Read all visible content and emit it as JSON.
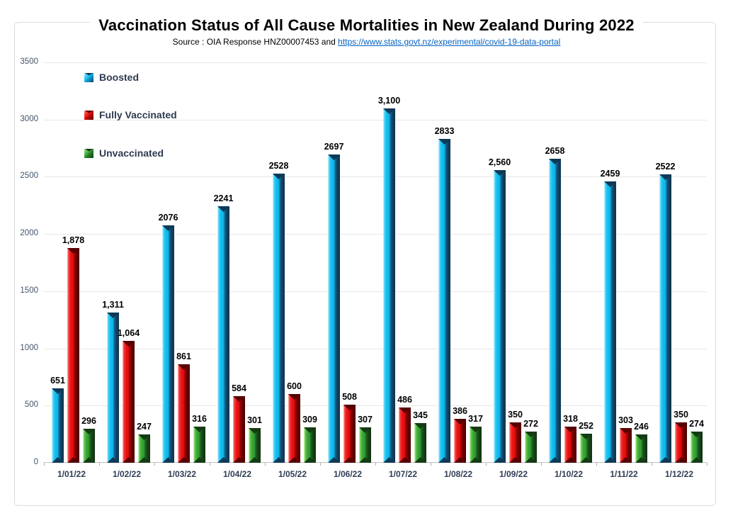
{
  "header": {
    "title": "Vaccination Status of All Cause Mortalities in New Zealand During 2022",
    "source_prefix": "Source : OIA Response HNZ00007453 and ",
    "source_link": "https://www.stats.govt.nz/experimental/covid-19-data-portal"
  },
  "chart_data": {
    "type": "bar",
    "title": "Vaccination Status of All Cause Mortalities in New Zealand During 2022",
    "categories": [
      "1/01/22",
      "1/02/22",
      "1/03/22",
      "1/04/22",
      "1/05/22",
      "1/06/22",
      "1/07/22",
      "1/08/22",
      "1/09/22",
      "1/10/22",
      "1/11/22",
      "1/12/22"
    ],
    "series": [
      {
        "name": "Boosted",
        "color": "#12beef",
        "values": [
          651,
          1311,
          2076,
          2241,
          2528,
          2697,
          3100,
          2833,
          2560,
          2658,
          2459,
          2522
        ],
        "labels": [
          "651",
          "1,311",
          "2076",
          "2241",
          "2528",
          "2697",
          "3,100",
          "2833",
          "2,560",
          "2658",
          "2459",
          "2522"
        ]
      },
      {
        "name": "Fully Vaccinated",
        "color": "#ea1111",
        "values": [
          1878,
          1064,
          861,
          584,
          600,
          508,
          486,
          386,
          350,
          318,
          303,
          350
        ],
        "labels": [
          "1,878",
          "1,064",
          "861",
          "584",
          "600",
          "508",
          "486",
          "386",
          "350",
          "318",
          "303",
          "350"
        ]
      },
      {
        "name": "Unvaccinated",
        "color": "#38a537",
        "values": [
          296,
          247,
          316,
          301,
          309,
          307,
          345,
          317,
          272,
          252,
          246,
          274
        ],
        "labels": [
          "296",
          "247",
          "316",
          "301",
          "309",
          "307",
          "345",
          "317",
          "272",
          "252",
          "246",
          "274"
        ]
      }
    ],
    "xlabel": "",
    "ylabel": "",
    "ylim": [
      0,
      3500
    ],
    "y_ticks": [
      0,
      500,
      1000,
      1500,
      2000,
      2500,
      3000,
      3500
    ],
    "grid": true,
    "legend_position": "upper-left-inside"
  }
}
